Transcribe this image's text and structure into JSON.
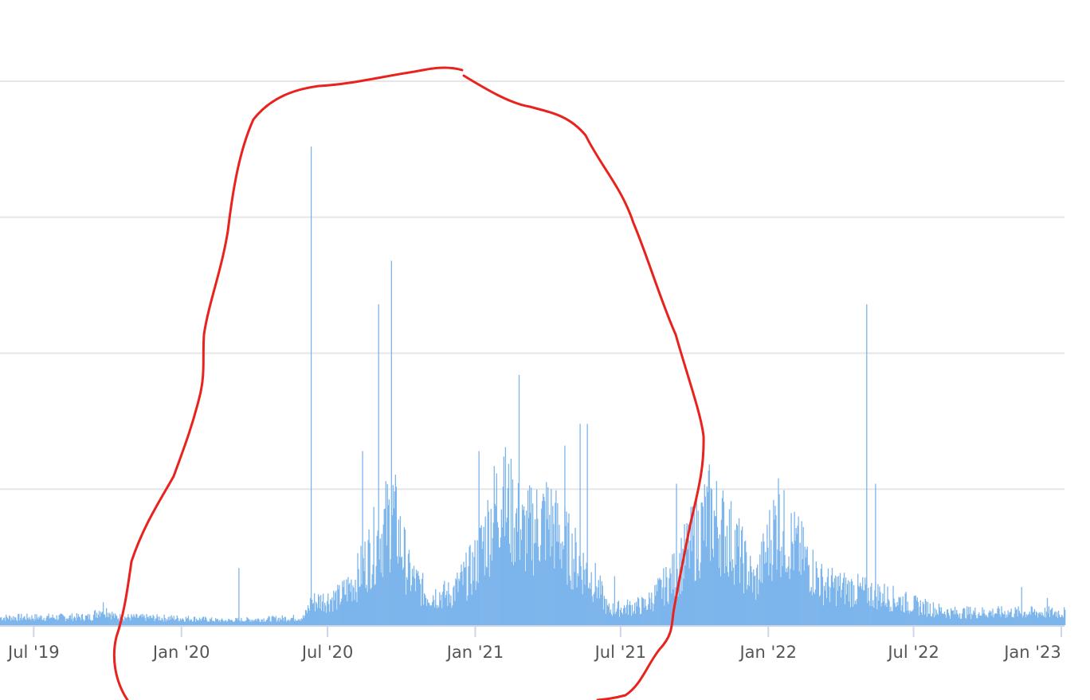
{
  "chart_data": {
    "type": "bar",
    "title": "",
    "xlabel": "",
    "ylabel": "",
    "y_axis_labels_visible": false,
    "ylim": [
      0,
      100
    ],
    "y_gridlines": [
      25,
      50,
      75,
      100
    ],
    "x_range": [
      "2019-05-20",
      "2023-01-05"
    ],
    "x_ticks": [
      {
        "date": "2019-07-01",
        "label": "Jul '19"
      },
      {
        "date": "2020-01-01",
        "label": "Jan '20"
      },
      {
        "date": "2020-07-01",
        "label": "Jul '20"
      },
      {
        "date": "2021-01-01",
        "label": "Jan '21"
      },
      {
        "date": "2021-07-01",
        "label": "Jul '21"
      },
      {
        "date": "2022-01-01",
        "label": "Jan '22"
      },
      {
        "date": "2022-07-01",
        "label": "Jul '22"
      },
      {
        "date": "2023-01-01",
        "label": "Jan '23"
      }
    ],
    "series_color": "#7cb5ec",
    "grid_color": "#e6e6e6",
    "daily_level_keypoints": [
      [
        "2019-05-20",
        1.5
      ],
      [
        "2019-09-10",
        1.6
      ],
      [
        "2019-09-25",
        3.5
      ],
      [
        "2019-10-10",
        1.6
      ],
      [
        "2020-01-15",
        1.3
      ],
      [
        "2020-02-20",
        0.9
      ],
      [
        "2020-04-15",
        1.2
      ],
      [
        "2020-06-01",
        1.5
      ],
      [
        "2020-06-10",
        4.5
      ],
      [
        "2020-07-15",
        5.5
      ],
      [
        "2020-08-05",
        9
      ],
      [
        "2020-08-25",
        15
      ],
      [
        "2020-09-20",
        22
      ],
      [
        "2020-10-10",
        10
      ],
      [
        "2020-11-01",
        6
      ],
      [
        "2020-12-01",
        6
      ],
      [
        "2021-01-01",
        12
      ],
      [
        "2021-02-01",
        26
      ],
      [
        "2021-03-01",
        18
      ],
      [
        "2021-04-01",
        21
      ],
      [
        "2021-05-01",
        14
      ],
      [
        "2021-06-01",
        8
      ],
      [
        "2021-06-15",
        3
      ],
      [
        "2021-08-01",
        4
      ],
      [
        "2021-09-01",
        9
      ],
      [
        "2021-09-20",
        14
      ],
      [
        "2021-10-20",
        22
      ],
      [
        "2021-11-20",
        16
      ],
      [
        "2021-12-15",
        8
      ],
      [
        "2022-01-10",
        20
      ],
      [
        "2022-02-10",
        14
      ],
      [
        "2022-03-10",
        8
      ],
      [
        "2022-04-15",
        7
      ],
      [
        "2022-05-20",
        6
      ],
      [
        "2022-07-01",
        4
      ],
      [
        "2022-08-15",
        2.5
      ],
      [
        "2023-01-05",
        2.5
      ]
    ],
    "spikes": [
      [
        "2020-03-12",
        10.5
      ],
      [
        "2020-06-10",
        88
      ],
      [
        "2020-08-13",
        32
      ],
      [
        "2020-09-02",
        59
      ],
      [
        "2020-09-18",
        67
      ],
      [
        "2021-01-05",
        32
      ],
      [
        "2021-02-05",
        31
      ],
      [
        "2021-02-24",
        46
      ],
      [
        "2021-04-22",
        33
      ],
      [
        "2021-05-11",
        37
      ],
      [
        "2021-05-20",
        37
      ],
      [
        "2021-06-23",
        9
      ],
      [
        "2021-09-08",
        26
      ],
      [
        "2022-01-13",
        27
      ],
      [
        "2022-05-03",
        59
      ],
      [
        "2022-05-14",
        26
      ],
      [
        "2022-11-12",
        7
      ],
      [
        "2022-12-14",
        5
      ]
    ]
  },
  "annotation": {
    "color": "#e8231e",
    "shape": "hand-drawn loop around Jun 2020 – Jul 2021"
  }
}
